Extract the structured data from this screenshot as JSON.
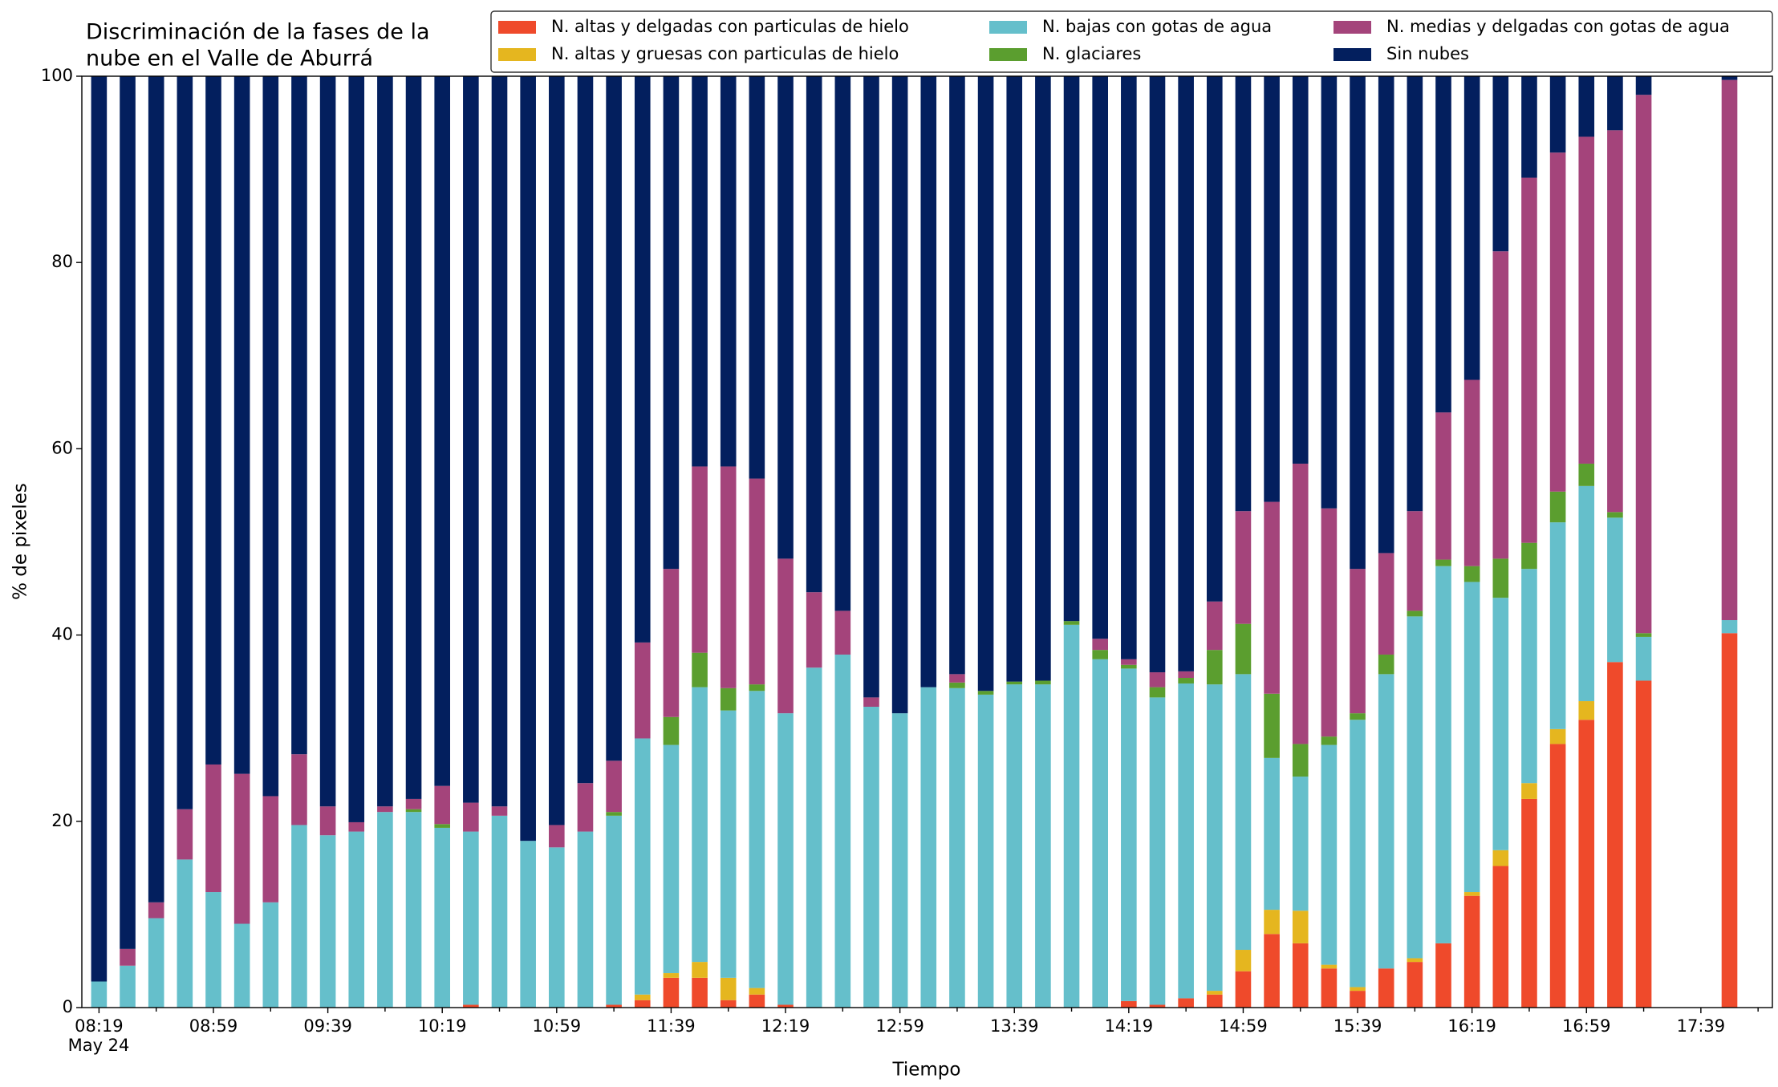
{
  "chart_data": {
    "type": "stacked_bar",
    "title": [
      "Discriminación de la fases de la",
      "nube en el Valle de Aburrá"
    ],
    "x_label": "Tiempo",
    "y_label": "% de pixeles",
    "date_label": "May 24",
    "categories": [
      "08:19",
      null,
      null,
      null,
      "08:59",
      null,
      null,
      null,
      "09:39",
      null,
      null,
      null,
      "10:19",
      null,
      null,
      null,
      "10:59",
      null,
      null,
      null,
      "11:39",
      null,
      null,
      null,
      "12:19",
      null,
      null,
      null,
      "12:59",
      null,
      null,
      null,
      "13:39",
      null,
      null,
      null,
      "14:19",
      null,
      null,
      null,
      "14:59",
      null,
      null,
      null,
      "15:39",
      null,
      null,
      null,
      "16:19",
      null,
      null,
      null,
      "16:59",
      null,
      null,
      null,
      "17:39",
      null
    ],
    "ylim": [
      0,
      100
    ],
    "yticks": [
      0,
      20,
      40,
      60,
      80,
      100
    ],
    "legend": "top-right",
    "series": [
      {
        "name": "N. altas y delgadas con particulas de hielo",
        "color": "#ef4a2b",
        "values": [
          0,
          0,
          0,
          0,
          0,
          0,
          0,
          0,
          0,
          0,
          0,
          0,
          0,
          0.3,
          0,
          0,
          0,
          0,
          0.3,
          0.8,
          3.2,
          3.2,
          0.8,
          1.4,
          0.3,
          0,
          0,
          0,
          0,
          0,
          0,
          0,
          0,
          0,
          0,
          0,
          0.7,
          0.3,
          1.0,
          1.4,
          3.9,
          7.9,
          6.9,
          4.2,
          1.8,
          4.2,
          4.9,
          6.9,
          12.0,
          15.2,
          22.4,
          28.3,
          30.9,
          37.1,
          35.1,
          null,
          null,
          40.2
        ]
      },
      {
        "name": "N. altas y gruesas con particulas de hielo",
        "color": "#e5b61f",
        "values": [
          0,
          0,
          0,
          0,
          0,
          0,
          0,
          0,
          0,
          0,
          0,
          0,
          0,
          0,
          0,
          0,
          0,
          0,
          0,
          0.6,
          0.5,
          1.7,
          2.4,
          0.7,
          0,
          0,
          0,
          0,
          0,
          0,
          0,
          0,
          0,
          0,
          0,
          0,
          0,
          0,
          0,
          0.4,
          2.3,
          2.6,
          3.5,
          0.4,
          0.4,
          0,
          0.4,
          0,
          0.4,
          1.7,
          1.7,
          1.6,
          2.0,
          0,
          0,
          null,
          null,
          0
        ]
      },
      {
        "name": "N. bajas con gotas de agua",
        "color": "#65bfcb",
        "values": [
          2.8,
          4.5,
          9.6,
          15.9,
          12.4,
          9.0,
          11.3,
          19.6,
          18.5,
          18.9,
          21.0,
          21.0,
          19.3,
          18.6,
          20.6,
          17.9,
          17.2,
          18.9,
          20.3,
          27.5,
          24.5,
          29.5,
          28.7,
          31.9,
          31.3,
          36.5,
          37.9,
          32.3,
          31.6,
          34.4,
          34.3,
          33.6,
          34.7,
          34.7,
          41.1,
          37.4,
          35.7,
          33.0,
          33.8,
          32.9,
          29.6,
          16.3,
          14.4,
          23.6,
          28.7,
          31.6,
          36.7,
          40.5,
          33.3,
          27.1,
          23.0,
          22.2,
          23.1,
          15.5,
          4.7,
          null,
          null,
          1.4
        ]
      },
      {
        "name": "N. glaciares",
        "color": "#5b9e2f",
        "values": [
          0,
          0,
          0,
          0,
          0,
          0,
          0,
          0,
          0,
          0,
          0,
          0.3,
          0.4,
          0,
          0,
          0,
          0,
          0,
          0.4,
          0,
          3.0,
          3.7,
          2.4,
          0.7,
          0,
          0,
          0,
          0,
          0,
          0,
          0.6,
          0.4,
          0.3,
          0.4,
          0.4,
          1.0,
          0.4,
          1.1,
          0.6,
          3.7,
          5.4,
          6.9,
          3.5,
          0.9,
          0.7,
          2.1,
          0.6,
          0.7,
          1.7,
          4.2,
          2.8,
          3.3,
          2.4,
          0.6,
          0.4,
          null,
          null,
          0
        ]
      },
      {
        "name": "N. medias y delgadas con gotas de agua",
        "color": "#a4447b",
        "values": [
          0,
          1.8,
          1.7,
          5.4,
          13.7,
          16.1,
          11.4,
          7.6,
          3.1,
          1.0,
          0.6,
          1.1,
          4.1,
          3.1,
          1.0,
          0,
          2.4,
          5.2,
          5.5,
          10.3,
          15.9,
          20.0,
          23.8,
          22.1,
          16.6,
          8.1,
          4.7,
          1.0,
          0,
          0,
          0.9,
          0,
          0,
          0,
          0,
          1.2,
          0.6,
          1.6,
          0.7,
          5.2,
          12.1,
          20.6,
          30.1,
          24.5,
          15.5,
          10.9,
          10.7,
          15.8,
          20.0,
          33.0,
          39.2,
          36.4,
          35.1,
          41.0,
          57.8,
          null,
          null,
          58.0
        ]
      },
      {
        "name": "Sin nubes",
        "color": "#031f5e",
        "values": [
          97.2,
          93.7,
          88.7,
          78.7,
          73.9,
          74.9,
          77.3,
          72.8,
          78.4,
          80.1,
          78.4,
          77.6,
          76.2,
          78.0,
          78.4,
          82.1,
          80.4,
          75.9,
          73.5,
          60.8,
          52.9,
          41.9,
          41.9,
          43.2,
          51.8,
          55.4,
          57.4,
          66.7,
          68.4,
          65.6,
          64.2,
          66.0,
          65.0,
          64.9,
          58.5,
          60.4,
          62.6,
          64.0,
          63.9,
          56.4,
          46.7,
          45.7,
          41.6,
          46.4,
          52.9,
          51.2,
          46.7,
          36.1,
          32.6,
          18.8,
          10.9,
          8.2,
          6.5,
          5.8,
          2.0,
          null,
          null,
          0.4
        ]
      }
    ]
  }
}
